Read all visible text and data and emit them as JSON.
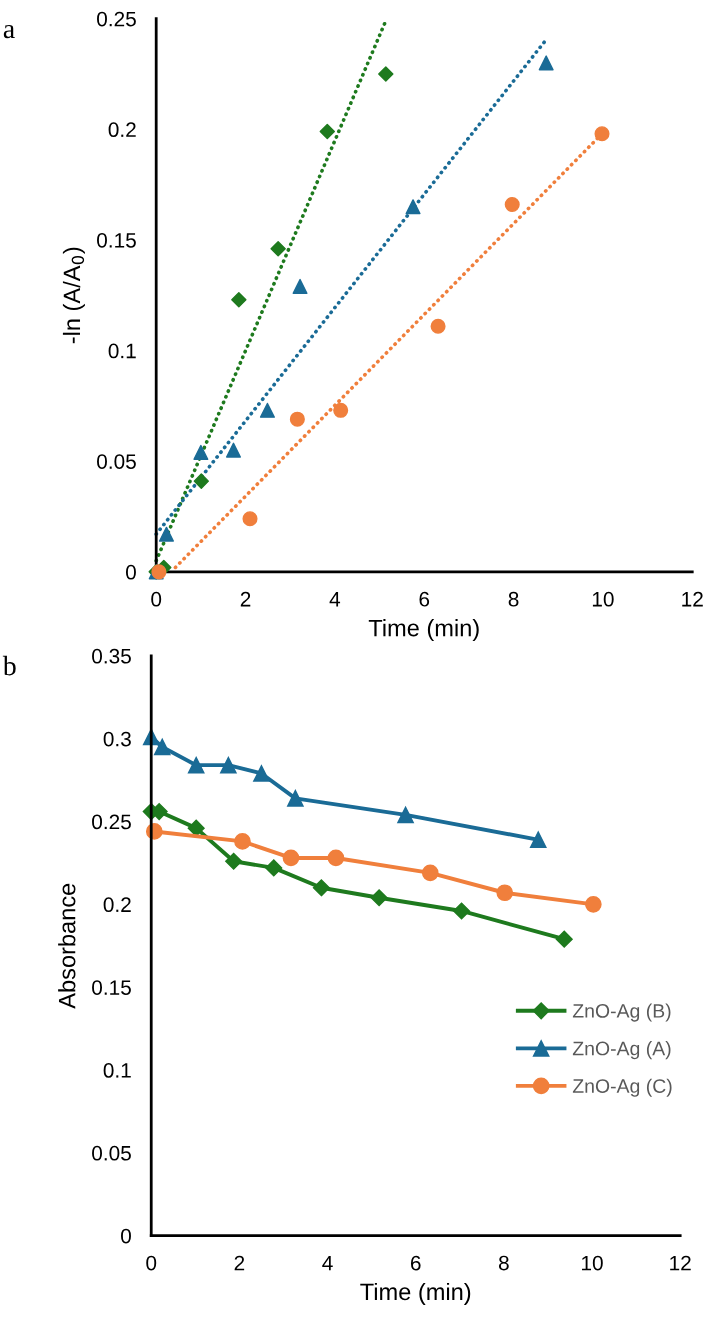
{
  "chart_data": [
    {
      "type": "scatter",
      "ylabel": "-ln (A/A$_{0}$)",
      "xlabel": "Time (min)",
      "annotations": [
        "a"
      ],
      "xlim": [
        0,
        12
      ],
      "xticks": [
        0,
        2,
        4,
        6,
        8,
        10,
        12
      ],
      "ylim": [
        0,
        0.25
      ],
      "yticks": [
        0,
        0.05,
        0.1,
        0.15,
        0.2,
        0.25
      ],
      "grid": false,
      "legend": false,
      "series": [
        {
          "type": "scatter",
          "marker": "diamond",
          "color": "#1e7a1e",
          "x": [
            0,
            0.17,
            1.01,
            1.85,
            2.73,
            3.83,
            5.14
          ],
          "values": [
            0,
            0.002,
            0.041,
            0.123,
            0.146,
            0.199,
            0.225
          ]
        },
        {
          "type": "scatter",
          "marker": "triangle",
          "color": "#1a6b96",
          "x": [
            0,
            0.23,
            1.0,
            1.73,
            2.49,
            3.22,
            5.75,
            8.73
          ],
          "values": [
            0,
            0.017,
            0.054,
            0.055,
            0.073,
            0.129,
            0.165,
            0.23
          ]
        },
        {
          "type": "scatter",
          "marker": "circle",
          "color": "#f07f3c",
          "x": [
            0.06,
            2.1,
            3.16,
            4.13,
            6.31,
            7.97,
            9.98
          ],
          "values": [
            0,
            0.024,
            0.069,
            0.073,
            0.111,
            0.166,
            0.198
          ]
        },
        {
          "type": "line",
          "line_style": "dotted",
          "marker": "none",
          "color": "#1e7a1e",
          "x": [
            0,
            5.16
          ],
          "values": [
            0.005,
            0.25
          ]
        },
        {
          "type": "line",
          "line_style": "dotted",
          "marker": "none",
          "color": "#1a6b96",
          "x": [
            0,
            8.73
          ],
          "values": [
            0.017,
            0.2405
          ]
        },
        {
          "type": "line",
          "line_style": "dotted",
          "marker": "none",
          "color": "#f07f3c",
          "x": [
            0.43,
            9.98
          ],
          "values": [
            0.002,
            0.198
          ]
        }
      ]
    },
    {
      "type": "line",
      "ylabel": "Absorbance",
      "xlabel": "Time (min)",
      "annotations": [
        "b"
      ],
      "xlim": [
        0,
        12
      ],
      "xticks": [
        0,
        2,
        4,
        6,
        8,
        10,
        12
      ],
      "ylim": [
        0,
        0.35
      ],
      "yticks": [
        0,
        0.05,
        0.1,
        0.15,
        0.2,
        0.25,
        0.3,
        0.35
      ],
      "grid": false,
      "legend": "right",
      "line_style": "solid",
      "series": [
        {
          "name": "ZnO-Ag (B)",
          "marker": "diamond",
          "color": "#1e7a1e",
          "x": [
            0,
            0.18,
            1.02,
            1.87,
            2.78,
            3.86,
            5.17,
            7.04,
            9.37
          ],
          "values": [
            0.256,
            0.256,
            0.246,
            0.226,
            0.222,
            0.21,
            0.204,
            0.196,
            0.179
          ]
        },
        {
          "name": "ZnO-Ag (A)",
          "marker": "triangle",
          "color": "#1a6b96",
          "x": [
            0,
            0.25,
            1.02,
            1.75,
            2.5,
            3.27,
            5.77,
            8.78
          ],
          "values": [
            0.301,
            0.295,
            0.284,
            0.284,
            0.279,
            0.264,
            0.254,
            0.239
          ]
        },
        {
          "name": "ZnO-Ag (C)",
          "marker": "circle",
          "color": "#f07f3c",
          "x": [
            0.07,
            2.07,
            3.17,
            4.19,
            6.33,
            8.02,
            10.03
          ],
          "values": [
            0.244,
            0.238,
            0.228,
            0.228,
            0.219,
            0.207,
            0.2
          ]
        }
      ]
    }
  ]
}
